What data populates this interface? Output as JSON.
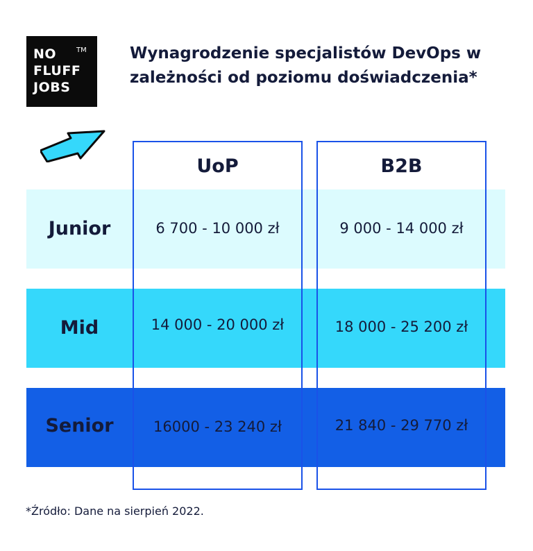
{
  "logo": {
    "lines": [
      "NO",
      "FLUFF",
      "JOBS"
    ],
    "trademark": "TM"
  },
  "title": "Wynagrodzenie specjalistów DevOps w zależności od poziomu doświadczenia*",
  "icons": {
    "arrow": "arrow-up-right-icon"
  },
  "colors": {
    "junior_row": "#dcfbfe",
    "mid_row": "#35d8fb",
    "senior_row": "#135fe6",
    "column_border": "#1a52e8",
    "text": "#141b3a"
  },
  "chart_data": {
    "type": "table",
    "title": "Wynagrodzenie specjalistów DevOps w zależności od poziomu doświadczenia*",
    "columns": [
      "UoP",
      "B2B"
    ],
    "rows": [
      {
        "level": "Junior",
        "UoP": "6 700 - 10 000 zł",
        "B2B": "9 000 - 14 000 zł"
      },
      {
        "level": "Mid",
        "UoP": "14 000 - 20 000 zł",
        "B2B": "18 000 - 25 200 zł"
      },
      {
        "level": "Senior",
        "UoP": "16000 - 23 240 zł",
        "B2B": "21 840 - 29 770 zł"
      }
    ]
  },
  "footnote": "*Źródło: Dane na sierpień 2022."
}
